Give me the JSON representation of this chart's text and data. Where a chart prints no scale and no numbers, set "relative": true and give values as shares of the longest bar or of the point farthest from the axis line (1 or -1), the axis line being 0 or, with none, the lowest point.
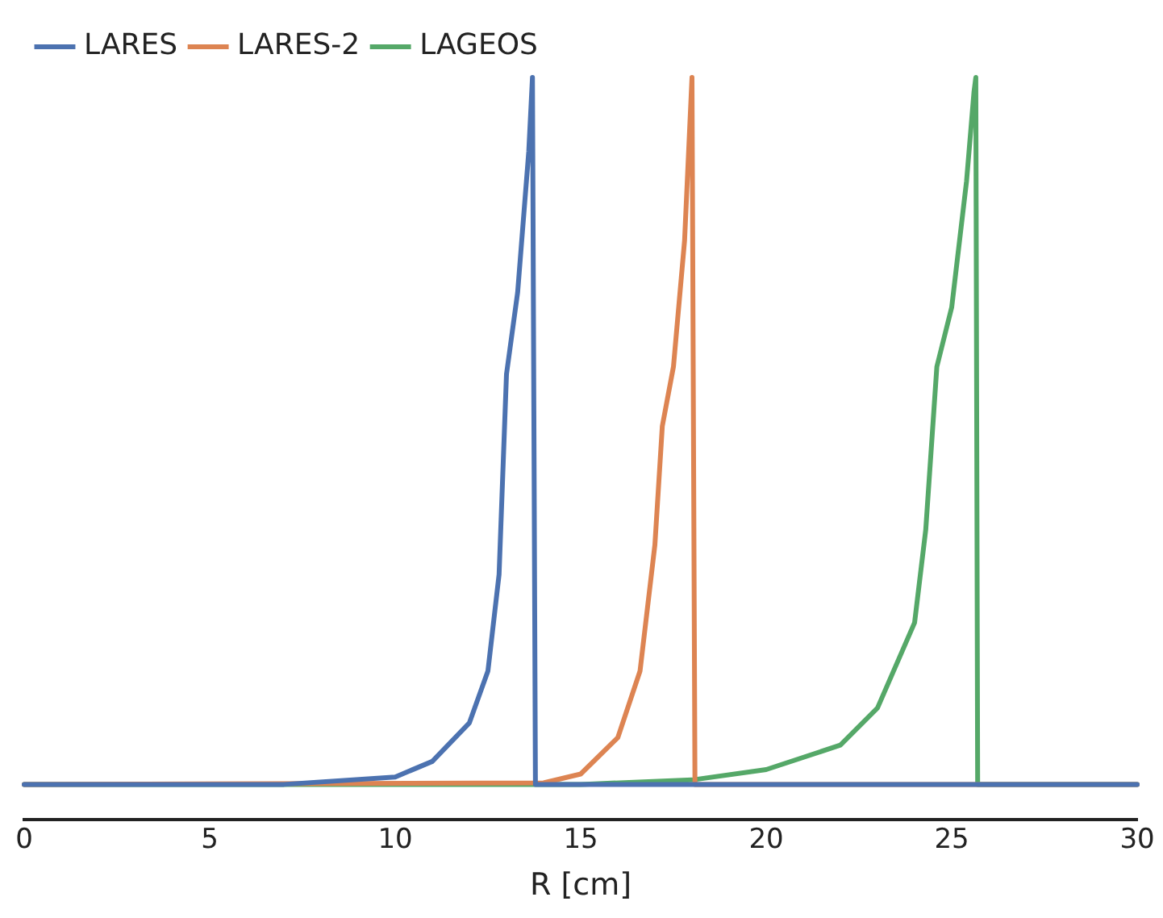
{
  "chart_data": {
    "type": "line",
    "xlabel": "R [cm]",
    "relative": true,
    "xlim": [
      0,
      30
    ],
    "xticks": [
      0,
      5,
      10,
      15,
      20,
      25,
      30
    ],
    "grid": false,
    "legend": "top left",
    "marker": "none",
    "line_style": "solid",
    "series": [
      {
        "name": "LARES",
        "color": "#4c72b0",
        "x": [
          0,
          7,
          10,
          11,
          12,
          12.5,
          12.8,
          13,
          13.3,
          13.6,
          13.7,
          13.78,
          30
        ],
        "values": [
          0.047,
          0.047,
          0.057,
          0.078,
          0.13,
          0.2,
          0.33,
          0.6,
          0.71,
          0.9,
          1,
          0.047,
          0.047
        ]
      },
      {
        "name": "LARES-2",
        "color": "#dd8452",
        "x": [
          0,
          14,
          15,
          16,
          16.6,
          17,
          17.2,
          17.5,
          17.8,
          18,
          18.08,
          30
        ],
        "values": [
          0.047,
          0.049,
          0.061,
          0.11,
          0.2,
          0.37,
          0.53,
          0.61,
          0.78,
          1,
          0.047,
          0.047
        ]
      },
      {
        "name": "LAGEOS",
        "color": "#55a868",
        "x": [
          0,
          15,
          18,
          20,
          22,
          23,
          24,
          24.3,
          24.6,
          25,
          25.4,
          25.6,
          25.65,
          25.7,
          30
        ],
        "values": [
          0.047,
          0.047,
          0.053,
          0.067,
          0.1,
          0.15,
          0.265,
          0.39,
          0.61,
          0.69,
          0.86,
          0.98,
          1,
          0.047,
          0.047
        ]
      }
    ]
  }
}
